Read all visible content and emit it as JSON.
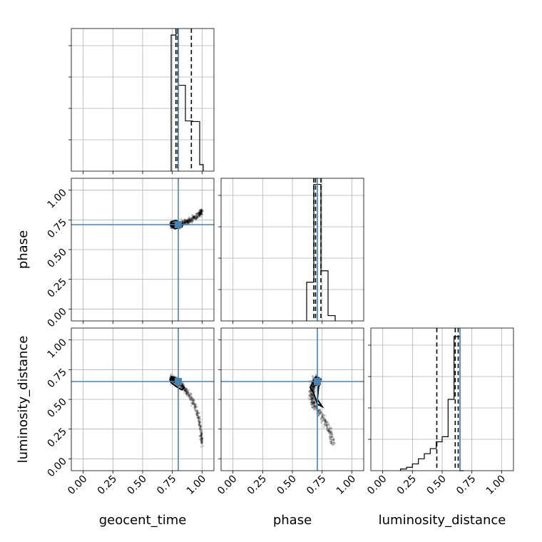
{
  "chart_data": {
    "type": "corner",
    "parameters": [
      "geocent_time",
      "phase",
      "luminosity_distance"
    ],
    "axis_labels": {
      "x": [
        "geocent_time",
        "phase",
        "luminosity_distance"
      ],
      "y": [
        "phase",
        "luminosity_distance"
      ]
    },
    "range": [
      -0.1,
      1.1
    ],
    "ticks": [
      0.0,
      0.25,
      0.5,
      0.75,
      1.0
    ],
    "tick_labels": [
      "0.00",
      "0.25",
      "0.50",
      "0.75",
      "1.00"
    ],
    "truths": [
      0.8,
      0.71,
      0.65
    ],
    "colors": {
      "truth": "#4682b4",
      "hist": "#000000",
      "grid": "#b0b0b0",
      "points": "#000000",
      "marker": "#4682b4"
    },
    "grid": true,
    "histograms": [
      {
        "parameter": "geocent_time",
        "bin_edges": [
          0.74,
          0.78,
          0.8,
          0.86,
          0.92,
          0.98,
          1.01
        ],
        "counts": [
          42,
          42.5,
          26.5,
          15.5,
          15.3,
          2
        ],
        "ymax": 44,
        "quantiles": [
          0.78,
          0.795,
          0.91
        ]
      },
      {
        "parameter": "phase",
        "bin_edges": [
          0.62,
          0.68,
          0.74,
          0.8,
          0.86
        ],
        "counts": [
          9.5,
          33.5,
          12.3,
          1.3
        ],
        "ymax": 35,
        "quantiles": [
          0.68,
          0.695,
          0.74
        ]
      },
      {
        "parameter": "luminosity_distance",
        "bin_edges": [
          0.15,
          0.2,
          0.25,
          0.3,
          0.35,
          0.4,
          0.45,
          0.5,
          0.55,
          0.6,
          0.65,
          0.68
        ],
        "counts": [
          0.5,
          1,
          2,
          3.5,
          5,
          6.5,
          8.5,
          10,
          21,
          39.5,
          0
        ],
        "ymax": 42,
        "quantiles": [
          0.455,
          0.61,
          0.635
        ]
      }
    ],
    "scatter_panels": [
      {
        "x_param": "geocent_time",
        "y_param": "phase",
        "ridge": [
          [
            0.74,
            0.71
          ],
          [
            0.78,
            0.705
          ],
          [
            0.82,
            0.71
          ],
          [
            0.86,
            0.73
          ],
          [
            0.9,
            0.75
          ],
          [
            0.94,
            0.77
          ],
          [
            0.98,
            0.8
          ],
          [
            1.0,
            0.83
          ]
        ],
        "spread": [
          0.006,
          0.02
        ],
        "contours": [
          [
            [
              0.74,
              0.735
            ],
            [
              0.78,
              0.745
            ],
            [
              0.83,
              0.72
            ],
            [
              0.83,
              0.69
            ],
            [
              0.77,
              0.675
            ],
            [
              0.735,
              0.7
            ],
            [
              0.74,
              0.735
            ]
          ],
          [
            [
              0.755,
              0.72
            ],
            [
              0.79,
              0.725
            ],
            [
              0.81,
              0.71
            ],
            [
              0.785,
              0.695
            ],
            [
              0.755,
              0.7
            ],
            [
              0.755,
              0.72
            ]
          ]
        ]
      },
      {
        "x_param": "geocent_time",
        "y_param": "luminosity_distance",
        "ridge": [
          [
            0.74,
            0.68
          ],
          [
            0.78,
            0.65
          ],
          [
            0.82,
            0.62
          ],
          [
            0.86,
            0.58
          ],
          [
            0.9,
            0.52
          ],
          [
            0.94,
            0.45
          ],
          [
            0.97,
            0.35
          ],
          [
            0.99,
            0.22
          ],
          [
            1.0,
            0.12
          ]
        ],
        "spread": [
          0.006,
          0.025
        ],
        "contours": [
          [
            [
              0.73,
              0.67
            ],
            [
              0.75,
              0.69
            ],
            [
              0.79,
              0.67
            ],
            [
              0.85,
              0.6
            ],
            [
              0.83,
              0.58
            ],
            [
              0.78,
              0.61
            ],
            [
              0.74,
              0.64
            ],
            [
              0.73,
              0.67
            ]
          ],
          [
            [
              0.76,
              0.665
            ],
            [
              0.79,
              0.655
            ],
            [
              0.81,
              0.63
            ],
            [
              0.79,
              0.625
            ],
            [
              0.765,
              0.645
            ],
            [
              0.76,
              0.665
            ]
          ]
        ]
      },
      {
        "x_param": "phase",
        "y_param": "luminosity_distance",
        "ridge": [
          [
            0.7,
            0.68
          ],
          [
            0.68,
            0.62
          ],
          [
            0.66,
            0.55
          ],
          [
            0.67,
            0.48
          ],
          [
            0.7,
            0.43
          ],
          [
            0.74,
            0.37
          ],
          [
            0.78,
            0.3
          ],
          [
            0.82,
            0.22
          ],
          [
            0.84,
            0.13
          ]
        ],
        "spread": [
          0.012,
          0.018
        ],
        "contours": [
          [
            [
              0.7,
              0.69
            ],
            [
              0.74,
              0.67
            ],
            [
              0.72,
              0.6
            ],
            [
              0.71,
              0.5
            ],
            [
              0.75,
              0.44
            ],
            [
              0.71,
              0.46
            ],
            [
              0.68,
              0.55
            ],
            [
              0.65,
              0.6
            ],
            [
              0.68,
              0.66
            ],
            [
              0.7,
              0.69
            ]
          ],
          [
            [
              0.69,
              0.67
            ],
            [
              0.72,
              0.66
            ],
            [
              0.7,
              0.62
            ],
            [
              0.68,
              0.63
            ],
            [
              0.69,
              0.67
            ]
          ]
        ]
      }
    ]
  }
}
